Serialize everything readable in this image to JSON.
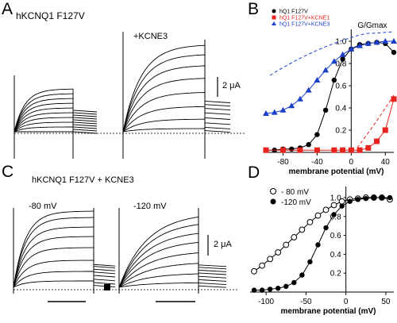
{
  "panels": {
    "A": {
      "letter": "A",
      "title": "hKCNQ1 F127V",
      "condition_label": "+KCNE3",
      "scalebar": "2 μA"
    },
    "B": {
      "letter": "B"
    },
    "C": {
      "letter": "C",
      "title": "hKCNQ1 F127V + KCNE3",
      "label_left": "-80 mV",
      "label_right": "-120 mV",
      "scalebar": "2 μA"
    },
    "D": {
      "letter": "D"
    }
  },
  "chart_data": [
    {
      "panel": "B",
      "type": "scatter",
      "ylabel": "G/Gmax",
      "xlabel": "membrane potential (mV)",
      "xticks": [
        "-80",
        "-40",
        "0",
        "40"
      ],
      "yticks": [
        "1.0",
        "0.8",
        "0.6",
        "0.4",
        "0.2"
      ],
      "xlim": [
        -100,
        50
      ],
      "ylim": [
        0,
        1.05
      ],
      "legend_position": "top-left",
      "series": [
        {
          "name": "hQ1 F127V",
          "color": "#000000",
          "marker": "circle",
          "x": [
            -100,
            -90,
            -80,
            -70,
            -60,
            -50,
            -40,
            -30,
            -20,
            -10,
            0,
            10,
            20,
            30,
            40,
            50
          ],
          "y": [
            0.02,
            0.02,
            0.03,
            0.03,
            0.04,
            0.07,
            0.16,
            0.38,
            0.65,
            0.84,
            0.93,
            0.97,
            0.98,
            0.99,
            0.98,
            0.9
          ]
        },
        {
          "name": "hQ1 F127V+KCNE1",
          "color": "#e8231e",
          "marker": "square",
          "x": [
            -100,
            -80,
            -60,
            -40,
            -20,
            -10,
            0,
            10,
            20,
            30,
            40,
            50
          ],
          "y": [
            0.02,
            0.02,
            0.02,
            0.02,
            0.02,
            0.02,
            0.02,
            0.02,
            0.04,
            0.1,
            0.2,
            0.48
          ]
        },
        {
          "name": "hQ1 F127V+KCNE3",
          "color": "#1c3fc8",
          "marker": "triangle",
          "x": [
            -100,
            -90,
            -80,
            -70,
            -60,
            -50,
            -40,
            -30,
            -20,
            -10,
            0,
            10,
            20,
            30,
            40,
            50
          ],
          "y": [
            0.35,
            0.36,
            0.38,
            0.42,
            0.48,
            0.56,
            0.65,
            0.74,
            0.82,
            0.88,
            0.93,
            0.96,
            0.98,
            0.99,
            1.0,
            1.0
          ]
        }
      ]
    },
    {
      "panel": "D",
      "type": "scatter",
      "xlabel": "membrane potential (mV)",
      "xticks": [
        "-100",
        "-50",
        "0",
        "50"
      ],
      "yticks": [
        "1.0",
        "0.8",
        "0.6",
        "0.4",
        "0.2"
      ],
      "xlim": [
        -120,
        60
      ],
      "ylim": [
        0,
        1.05
      ],
      "legend_position": "top-left",
      "series": [
        {
          "name": "- 80 mV",
          "color": "#000000",
          "marker": "open-circle",
          "x": [
            -115,
            -105,
            -95,
            -85,
            -75,
            -65,
            -55,
            -45,
            -35,
            -25,
            -15,
            -5,
            5,
            15,
            25,
            35,
            45,
            55
          ],
          "y": [
            0.22,
            0.28,
            0.35,
            0.42,
            0.5,
            0.58,
            0.66,
            0.74,
            0.81,
            0.87,
            0.92,
            0.96,
            0.98,
            0.99,
            1.0,
            1.0,
            1.0,
            0.98
          ]
        },
        {
          "name": "-120 mV",
          "color": "#000000",
          "marker": "filled-circle",
          "x": [
            -115,
            -105,
            -95,
            -85,
            -75,
            -65,
            -55,
            -45,
            -35,
            -25,
            -15,
            -5,
            5,
            15,
            25,
            35,
            45,
            55
          ],
          "y": [
            0.02,
            0.02,
            0.03,
            0.04,
            0.06,
            0.1,
            0.18,
            0.32,
            0.5,
            0.68,
            0.82,
            0.91,
            0.96,
            0.98,
            0.99,
            1.0,
            1.0,
            1.0
          ]
        }
      ]
    }
  ]
}
